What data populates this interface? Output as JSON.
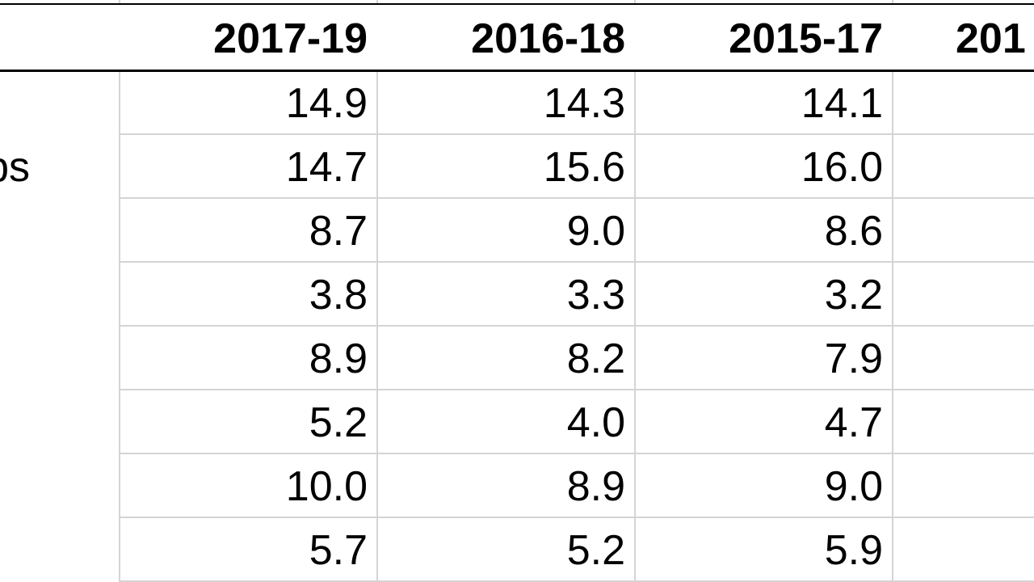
{
  "table": {
    "header": [
      "2017-19",
      "2016-18",
      "2015-17",
      "201"
    ],
    "rows": [
      {
        "cells": [
          "14.9",
          "14.3",
          "14.1"
        ]
      },
      {
        "label": "ps",
        "cells": [
          "14.7",
          "15.6",
          "16.0"
        ]
      },
      {
        "cells": [
          "8.7",
          "9.0",
          "8.6"
        ]
      },
      {
        "cells": [
          "3.8",
          "3.3",
          "3.2"
        ]
      },
      {
        "cells": [
          "8.9",
          "8.2",
          "7.9"
        ]
      },
      {
        "cells": [
          "5.2",
          "4.0",
          "4.7"
        ]
      },
      {
        "cells": [
          "10.0",
          "8.9",
          "9.0"
        ]
      },
      {
        "cells": [
          "5.7",
          "5.2",
          "5.9"
        ]
      }
    ]
  }
}
